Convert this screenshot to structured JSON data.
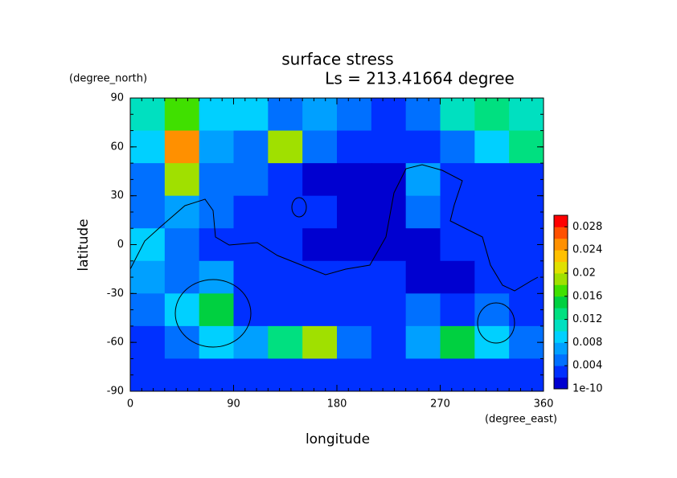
{
  "chart_data": {
    "type": "contour",
    "title": "surface stress",
    "subtitle": "Ls = 213.41664 degree",
    "x_label": "longitude",
    "y_label": "latitude",
    "x_unit": "(degree_east)",
    "y_unit": "(degree_north)",
    "xlim": [
      0,
      360
    ],
    "xticks": [
      0,
      90,
      180,
      270,
      360
    ],
    "ylim": [
      -90,
      90
    ],
    "yticks": [
      -90,
      -60,
      -30,
      0,
      30,
      60,
      90
    ],
    "x": [
      15,
      45,
      75,
      105,
      135,
      165,
      195,
      225,
      255,
      285,
      315,
      345
    ],
    "y": [
      80,
      60,
      40,
      20,
      0,
      -20,
      -40,
      -60,
      -80
    ],
    "z": [
      [
        0.012,
        0.018,
        0.01,
        0.01,
        0.006,
        0.008,
        0.006,
        0.004,
        0.006,
        0.012,
        0.014,
        0.012
      ],
      [
        0.01,
        0.026,
        0.008,
        0.006,
        0.02,
        0.006,
        0.004,
        0.003,
        0.004,
        0.006,
        0.01,
        0.014
      ],
      [
        0.006,
        0.02,
        0.006,
        0.006,
        0.004,
        0.002,
        0.002,
        0.002,
        0.008,
        0.004,
        0.004,
        0.004
      ],
      [
        0.006,
        0.008,
        0.006,
        0.004,
        0.004,
        0.003,
        0.002,
        0.002,
        0.006,
        0.004,
        0.004,
        0.004
      ],
      [
        0.01,
        0.006,
        0.004,
        0.004,
        0.004,
        0.002,
        0.002,
        0.002,
        0.002,
        0.003,
        0.004,
        0.004
      ],
      [
        0.008,
        0.006,
        0.008,
        0.004,
        0.004,
        0.004,
        0.004,
        0.003,
        0.002,
        0.002,
        0.004,
        0.004
      ],
      [
        0.006,
        0.01,
        0.016,
        0.004,
        0.004,
        0.004,
        0.004,
        0.004,
        0.006,
        0.004,
        0.006,
        0.004
      ],
      [
        0.004,
        0.006,
        0.01,
        0.008,
        0.014,
        0.02,
        0.006,
        0.004,
        0.008,
        0.016,
        0.01,
        0.006
      ],
      [
        0.003,
        0.004,
        0.004,
        0.004,
        0.004,
        0.004,
        0.003,
        0.003,
        0.003,
        0.003,
        0.003,
        0.003
      ]
    ],
    "colorbar": {
      "lim": [
        1e-10,
        0.03
      ],
      "ticks": [
        1e-10,
        0.004,
        0.008,
        0.012,
        0.016,
        0.02,
        0.024,
        0.028
      ],
      "colors": [
        "#0000d0",
        "#0030ff",
        "#0070ff",
        "#00a0ff",
        "#00d0ff",
        "#00e0c0",
        "#00e080",
        "#00d040",
        "#40e000",
        "#a0e000",
        "#e0e000",
        "#ffc000",
        "#ff9000",
        "#ff5000",
        "#ff0000"
      ]
    }
  }
}
